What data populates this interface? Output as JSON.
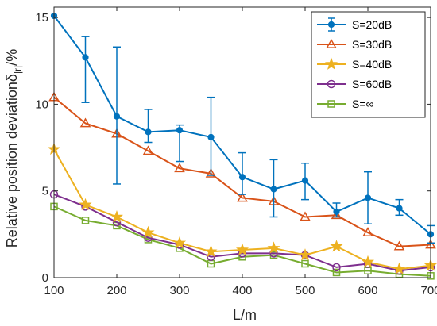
{
  "chart_data": {
    "type": "line",
    "xlabel": "L/m",
    "ylabel": "Relative position deviation",
    "ylabel_symbol": "δ",
    "ylabel_subscript": "|r|",
    "ylabel_unit": "/%",
    "xlim": [
      100,
      700
    ],
    "ylim": [
      0,
      15.6
    ],
    "x_ticks": [
      100,
      200,
      300,
      400,
      500,
      600,
      700
    ],
    "y_ticks": [
      0,
      5,
      10,
      15
    ],
    "x_tick_labels": [
      "100",
      "200",
      "300",
      "400",
      "500",
      "600",
      "700"
    ],
    "y_tick_labels": [
      "0",
      "5",
      "10",
      "15"
    ],
    "grid": false,
    "legend_position": "top-right",
    "x": [
      100,
      150,
      200,
      250,
      300,
      350,
      400,
      450,
      500,
      550,
      600,
      650,
      700
    ],
    "series": [
      {
        "name": "S=20dB",
        "color": "#0072BD",
        "marker": "dot",
        "values": [
          15.1,
          12.7,
          9.3,
          8.4,
          8.5,
          8.1,
          5.8,
          5.1,
          5.6,
          3.8,
          4.6,
          4.0,
          2.5
        ],
        "error_low": [
          15.1,
          10.1,
          5.4,
          7.8,
          6.7,
          5.9,
          4.8,
          3.5,
          4.5,
          3.5,
          3.1,
          3.6,
          2.0
        ],
        "error_high": [
          15.1,
          13.9,
          13.3,
          9.7,
          8.8,
          10.4,
          7.2,
          6.8,
          6.6,
          4.3,
          6.1,
          4.5,
          3.0
        ]
      },
      {
        "name": "S=30dB",
        "color": "#D95319",
        "marker": "triangle",
        "values": [
          10.4,
          8.9,
          8.3,
          7.3,
          6.3,
          6.0,
          4.6,
          4.4,
          3.5,
          3.6,
          2.6,
          1.8,
          1.9
        ]
      },
      {
        "name": "S=40dB",
        "color": "#EDB120",
        "marker": "star",
        "values": [
          7.4,
          4.2,
          3.5,
          2.6,
          2.0,
          1.5,
          1.6,
          1.7,
          1.3,
          1.8,
          0.9,
          0.5,
          0.7
        ]
      },
      {
        "name": "S=60dB",
        "color": "#7E2F8E",
        "marker": "circle",
        "values": [
          4.8,
          4.1,
          3.2,
          2.3,
          1.9,
          1.2,
          1.4,
          1.4,
          1.3,
          0.6,
          0.8,
          0.4,
          0.6
        ]
      },
      {
        "name": "S=∞",
        "color": "#77AC30",
        "marker": "square",
        "values": [
          4.1,
          3.3,
          3.0,
          2.2,
          1.7,
          0.8,
          1.2,
          1.3,
          0.8,
          0.3,
          0.4,
          0.2,
          0.1
        ]
      }
    ]
  }
}
